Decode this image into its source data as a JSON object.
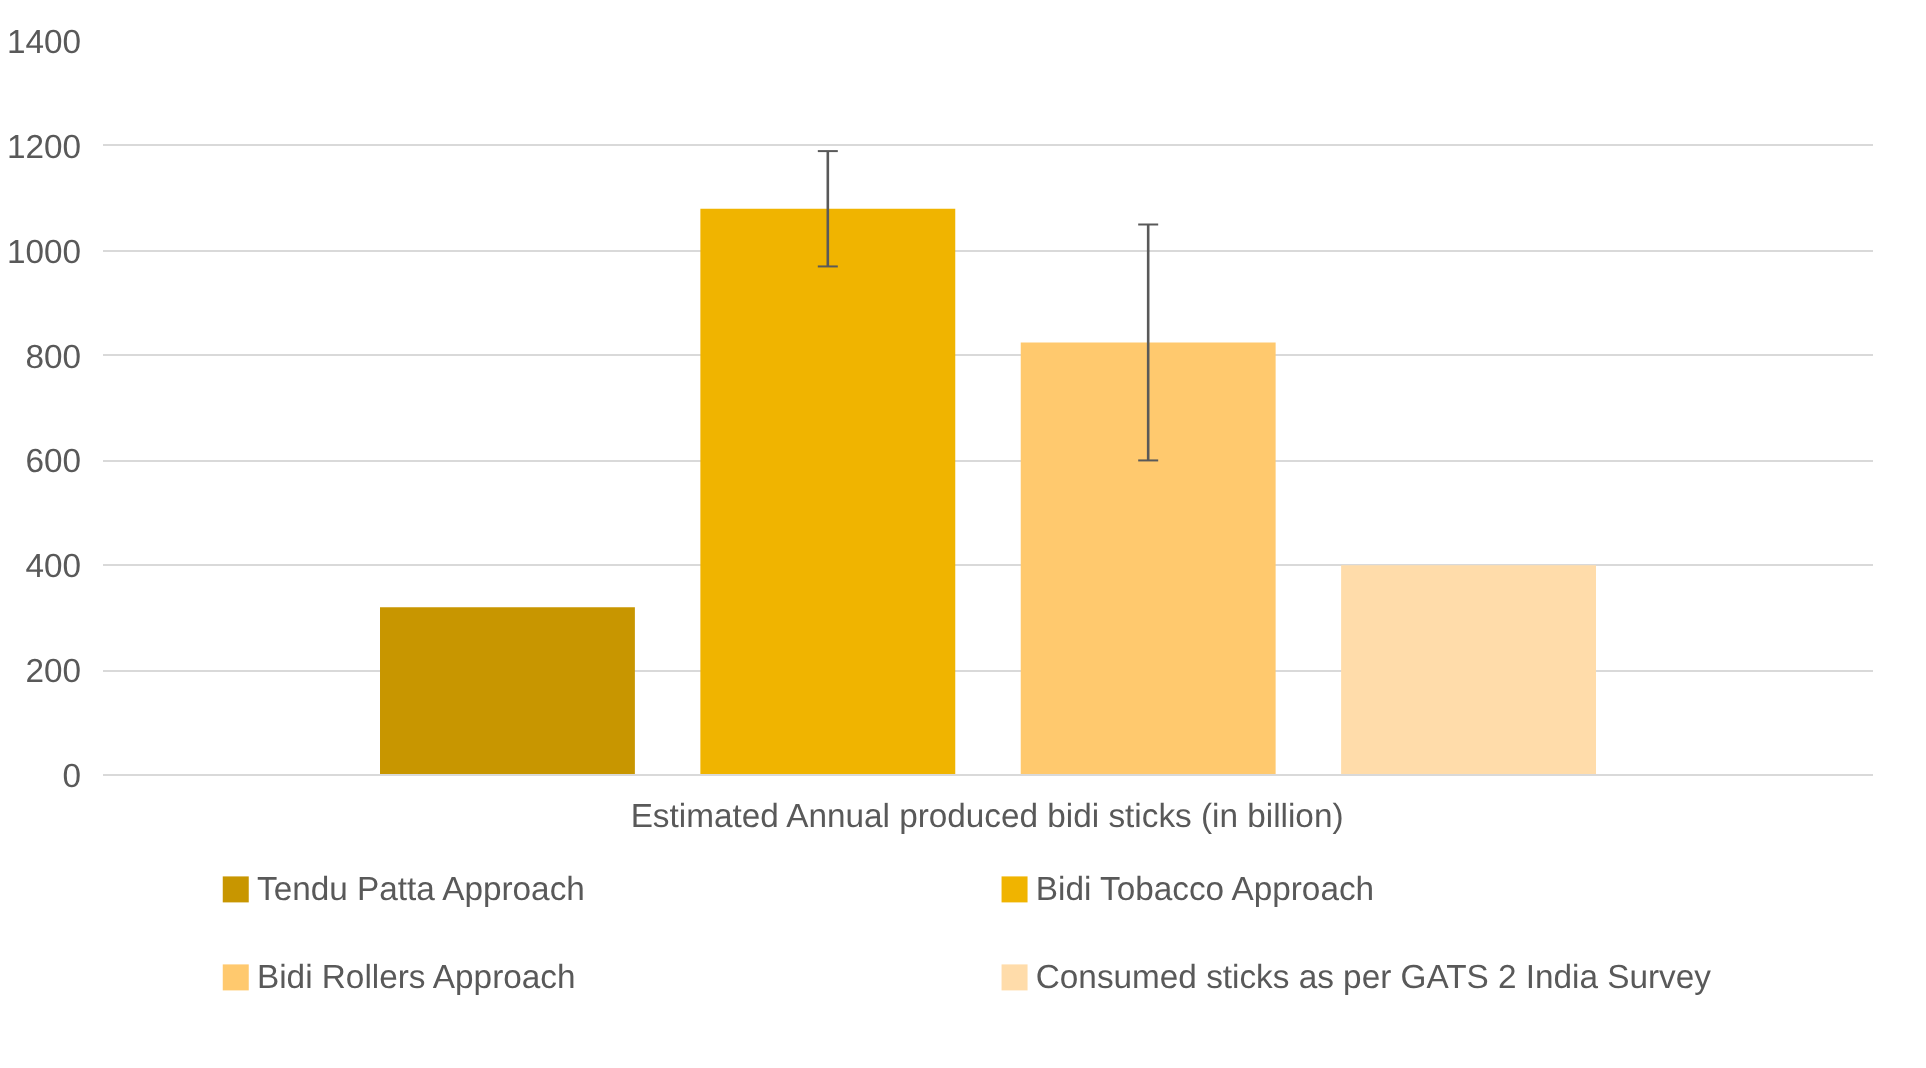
{
  "chart_data": {
    "type": "bar",
    "categories": [
      "Estimated Annual produced bidi sticks (in billion)"
    ],
    "series": [
      {
        "name": "Tendu Patta Approach",
        "color": "#c89600",
        "values": [
          320
        ]
      },
      {
        "name": "Bidi Tobacco Approach",
        "color": "#f0b400",
        "values": [
          1080
        ],
        "errors": [
          [
            970,
            1190
          ]
        ]
      },
      {
        "name": "Bidi Rollers Approach",
        "color": "#ffc96e",
        "values": [
          825
        ],
        "errors": [
          [
            600,
            1050
          ]
        ]
      },
      {
        "name": "Consumed sticks as per GATS 2 India Survey",
        "color": "#ffdcaa",
        "values": [
          400
        ]
      }
    ],
    "ylim": [
      0,
      1400
    ],
    "yticks": [
      0,
      200,
      400,
      600,
      800,
      1000,
      1200,
      1400
    ],
    "grid": "y",
    "legend": "bottom"
  }
}
